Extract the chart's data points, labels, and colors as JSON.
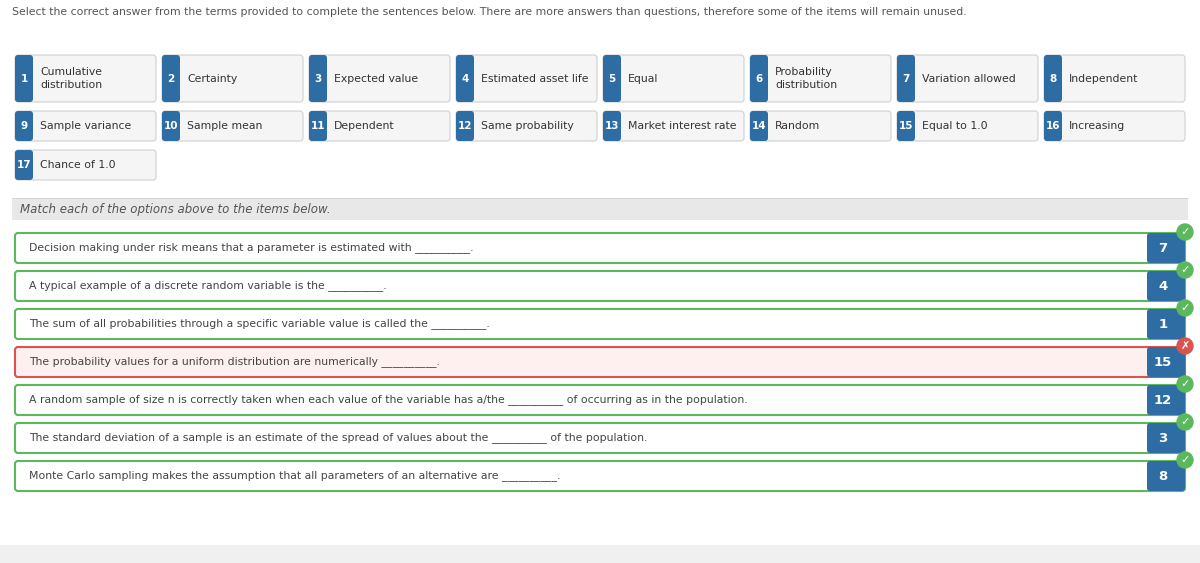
{
  "title_text": "Select the correct answer from the terms provided to complete the sentences below. There are more answers than questions, therefore some of the items will remain unused.",
  "page_bg": "#f0f0f0",
  "white_bg": "#ffffff",
  "terms": [
    {
      "num": "1",
      "text": "Cumulative\ndistribution"
    },
    {
      "num": "2",
      "text": "Certainty"
    },
    {
      "num": "3",
      "text": "Expected value"
    },
    {
      "num": "4",
      "text": "Estimated asset life"
    },
    {
      "num": "5",
      "text": "Equal"
    },
    {
      "num": "6",
      "text": "Probability\ndistribution"
    },
    {
      "num": "7",
      "text": "Variation allowed"
    },
    {
      "num": "8",
      "text": "Independent"
    },
    {
      "num": "9",
      "text": "Sample variance"
    },
    {
      "num": "10",
      "text": "Sample mean"
    },
    {
      "num": "11",
      "text": "Dependent"
    },
    {
      "num": "12",
      "text": "Same probability"
    },
    {
      "num": "13",
      "text": "Market interest rate"
    },
    {
      "num": "14",
      "text": "Random"
    },
    {
      "num": "15",
      "text": "Equal to 1.0"
    },
    {
      "num": "16",
      "text": "Increasing"
    },
    {
      "num": "17",
      "text": "Chance of 1.0"
    }
  ],
  "section_label": "Match each of the options above to the items below.",
  "questions": [
    {
      "text": "Decision making under risk means that a parameter is estimated with __________.",
      "answer": "7",
      "correct": true
    },
    {
      "text": "A typical example of a discrete random variable is the __________.",
      "answer": "4",
      "correct": true
    },
    {
      "text": "The sum of all probabilities through a specific variable value is called the __________.",
      "answer": "1",
      "correct": true
    },
    {
      "text": "The probability values for a uniform distribution are numerically __________.",
      "answer": "15",
      "correct": false
    },
    {
      "text": "A random sample of size n is correctly taken when each value of the variable has a/the __________ of occurring as in the population.",
      "answer": "12",
      "correct": true
    },
    {
      "text": "The standard deviation of a sample is an estimate of the spread of values about the __________ of the population.",
      "answer": "3",
      "correct": true
    },
    {
      "text": "Monte Carlo sampling makes the assumption that all parameters of an alternative are __________.",
      "answer": "8",
      "correct": true
    }
  ],
  "num_badge_color": "#2e6da4",
  "num_badge_text_color": "#ffffff",
  "term_bg_color": "#f5f5f5",
  "term_border_color": "#d0d0d0",
  "correct_border": "#5cb85c",
  "correct_bg": "#ffffff",
  "wrong_border": "#d9534f",
  "wrong_bg": "#fff0f0",
  "correct_icon_bg": "#5cb85c",
  "wrong_icon_bg": "#d9534f",
  "section_bg": "#e8e8e8",
  "section_text_color": "#555555"
}
